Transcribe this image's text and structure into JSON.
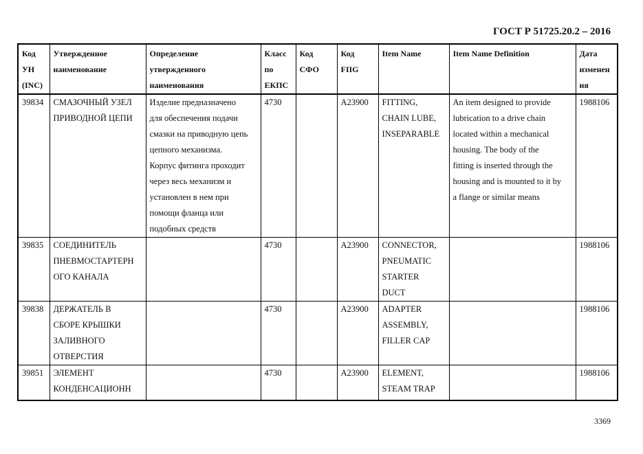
{
  "document": {
    "title": "ГОСТ Р 51725.20.2 – 2016",
    "page_number": "3369"
  },
  "table": {
    "headers": [
      [
        "Код",
        "УН",
        "(INC)"
      ],
      [
        "Утвержденное",
        "наименование"
      ],
      [
        "Определение",
        "утвержденного",
        "наименования"
      ],
      [
        "Класс",
        "по",
        "ЕКПС"
      ],
      [
        "Код",
        "СФО"
      ],
      [
        "Код",
        "FIIG"
      ],
      [
        "Item Name"
      ],
      [
        "Item Name Definition"
      ],
      [
        "Дата",
        "изменен",
        "ия"
      ]
    ],
    "rows": [
      {
        "inc": "39834",
        "name": [
          "СМАЗОЧНЫЙ УЗЕЛ",
          "ПРИВОДНОЙ ЦЕПИ"
        ],
        "definition": [
          "Изделие предназначено",
          "для обеспечения подачи",
          "смазки на приводную цепь",
          "цепного механизма.",
          "Корпус фитинга проходит",
          "через весь механизм и",
          "установлен в нем при",
          "помощи фланца или",
          "подобных средств"
        ],
        "class": "4730",
        "sfo": "",
        "fiig": "A23900",
        "item_name": [
          "FITTING,",
          "CHAIN LUBE,",
          "INSEPARABLE"
        ],
        "item_definition": [
          "An item designed to provide",
          "lubrication to a drive chain",
          "located within a mechanical",
          "housing.  The body of the",
          "fitting is inserted through the",
          "housing and is mounted to it by",
          "a flange or similar means"
        ],
        "date": "1988106"
      },
      {
        "inc": "39835",
        "name": [
          "СОЕДИНИТЕЛЬ",
          "ПНЕВМОСТАРТЕРН",
          "ОГО КАНАЛА"
        ],
        "definition": [],
        "class": "4730",
        "sfo": "",
        "fiig": "A23900",
        "item_name": [
          "CONNECTOR,",
          "PNEUMATIC",
          "STARTER",
          "DUCT"
        ],
        "item_definition": [],
        "date": "1988106"
      },
      {
        "inc": "39838",
        "name": [
          "ДЕРЖАТЕЛЬ В",
          "СБОРЕ КРЫШКИ",
          "ЗАЛИВНОГО",
          "ОТВЕРСТИЯ"
        ],
        "definition": [],
        "class": "4730",
        "sfo": "",
        "fiig": "A23900",
        "item_name": [
          "ADAPTER",
          "ASSEMBLY,",
          "FILLER CAP"
        ],
        "item_definition": [],
        "date": "1988106"
      },
      {
        "inc": "39851",
        "name": [
          "ЭЛЕМЕНТ",
          "КОНДЕНСАЦИОНН"
        ],
        "definition": [],
        "class": "4730",
        "sfo": "",
        "fiig": "A23900",
        "item_name": [
          "ELEMENT,",
          "STEAM TRAP"
        ],
        "item_definition": [],
        "date": "1988106"
      }
    ]
  }
}
